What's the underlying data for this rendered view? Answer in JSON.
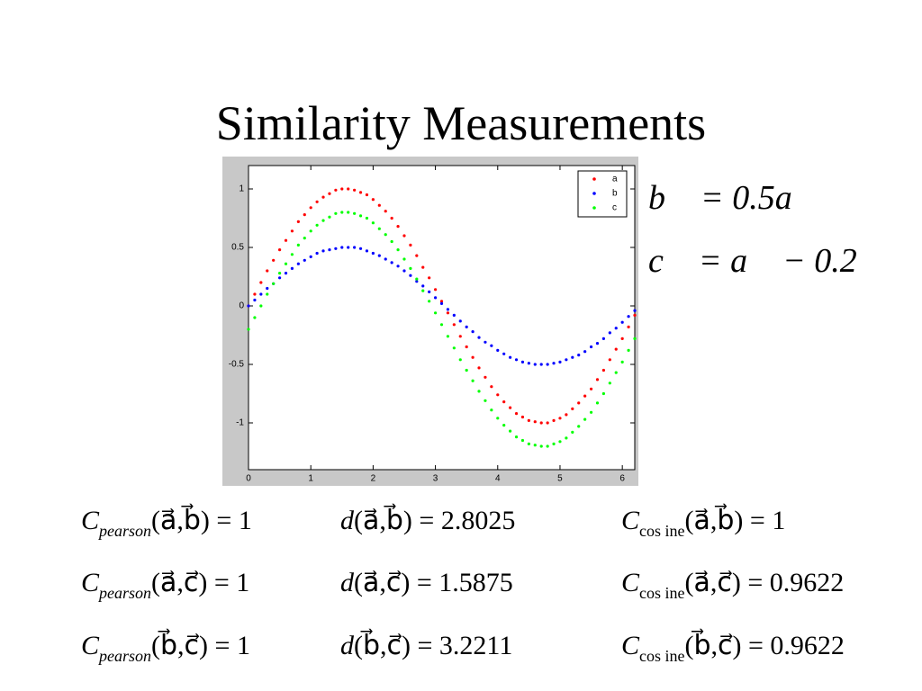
{
  "title": "Similarity Measurements",
  "chart_data": {
    "type": "scatter",
    "x": [
      0,
      0.1,
      0.2,
      0.3,
      0.4,
      0.5,
      0.6,
      0.7,
      0.8,
      0.9,
      1.0,
      1.1,
      1.2,
      1.3,
      1.4,
      1.5,
      1.6,
      1.7,
      1.8,
      1.9,
      2.0,
      2.1,
      2.2,
      2.3,
      2.4,
      2.5,
      2.6,
      2.7,
      2.8,
      2.9,
      3.0,
      3.1,
      3.2,
      3.3,
      3.4,
      3.5,
      3.6,
      3.7,
      3.8,
      3.9,
      4.0,
      4.1,
      4.2,
      4.3,
      4.4,
      4.5,
      4.6,
      4.7,
      4.8,
      4.9,
      5.0,
      5.1,
      5.2,
      5.3,
      5.4,
      5.5,
      5.6,
      5.7,
      5.8,
      5.9,
      6.0,
      6.1,
      6.2
    ],
    "series": [
      {
        "name": "a",
        "color": "#ff0000",
        "values": [
          0,
          0.1,
          0.2,
          0.3,
          0.39,
          0.48,
          0.56,
          0.64,
          0.72,
          0.78,
          0.84,
          0.89,
          0.93,
          0.96,
          0.99,
          1.0,
          1.0,
          0.99,
          0.97,
          0.95,
          0.91,
          0.86,
          0.81,
          0.75,
          0.68,
          0.6,
          0.52,
          0.43,
          0.33,
          0.24,
          0.14,
          0.04,
          -0.06,
          -0.16,
          -0.26,
          -0.35,
          -0.44,
          -0.53,
          -0.61,
          -0.69,
          -0.76,
          -0.82,
          -0.87,
          -0.92,
          -0.95,
          -0.98,
          -0.99,
          -1.0,
          -1.0,
          -0.98,
          -0.96,
          -0.93,
          -0.88,
          -0.83,
          -0.77,
          -0.71,
          -0.63,
          -0.55,
          -0.46,
          -0.37,
          -0.28,
          -0.18,
          -0.08
        ]
      },
      {
        "name": "b",
        "color": "#0000ff",
        "values": [
          0,
          0.05,
          0.1,
          0.15,
          0.19,
          0.24,
          0.28,
          0.32,
          0.36,
          0.39,
          0.42,
          0.45,
          0.47,
          0.48,
          0.49,
          0.5,
          0.5,
          0.5,
          0.49,
          0.47,
          0.45,
          0.43,
          0.4,
          0.37,
          0.34,
          0.3,
          0.26,
          0.21,
          0.17,
          0.12,
          0.07,
          0.02,
          -0.03,
          -0.08,
          -0.13,
          -0.18,
          -0.22,
          -0.27,
          -0.31,
          -0.34,
          -0.38,
          -0.41,
          -0.44,
          -0.46,
          -0.48,
          -0.49,
          -0.5,
          -0.5,
          -0.5,
          -0.49,
          -0.48,
          -0.46,
          -0.44,
          -0.42,
          -0.39,
          -0.35,
          -0.32,
          -0.28,
          -0.23,
          -0.19,
          -0.14,
          -0.09,
          -0.04
        ]
      },
      {
        "name": "c",
        "color": "#00ff00",
        "values": [
          -0.2,
          -0.1,
          0.0,
          0.1,
          0.19,
          0.28,
          0.36,
          0.44,
          0.52,
          0.58,
          0.64,
          0.69,
          0.73,
          0.76,
          0.79,
          0.8,
          0.8,
          0.79,
          0.77,
          0.75,
          0.71,
          0.66,
          0.61,
          0.55,
          0.48,
          0.4,
          0.32,
          0.23,
          0.13,
          0.04,
          -0.06,
          -0.16,
          -0.26,
          -0.36,
          -0.46,
          -0.55,
          -0.64,
          -0.73,
          -0.81,
          -0.89,
          -0.96,
          -1.02,
          -1.07,
          -1.12,
          -1.15,
          -1.18,
          -1.19,
          -1.2,
          -1.2,
          -1.18,
          -1.16,
          -1.13,
          -1.08,
          -1.03,
          -0.97,
          -0.91,
          -0.83,
          -0.75,
          -0.66,
          -0.57,
          -0.48,
          -0.38,
          -0.28
        ]
      }
    ],
    "xlim": [
      0,
      6.2
    ],
    "xticks": [
      0,
      1,
      2,
      3,
      4,
      5,
      6
    ],
    "ylim": [
      -1.4,
      1.2
    ],
    "yticks": [
      -1,
      -0.5,
      0,
      0.5,
      1
    ],
    "grid": false,
    "legend": "upper right"
  },
  "equations": [
    "b⃗ = 0.5a⃗",
    "c⃗ = a⃗ − 0.2"
  ],
  "measures": [
    [
      {
        "symbol": "C",
        "sub": "pearson",
        "args": "(a⃗,b⃗) = 1"
      },
      {
        "symbol": "d",
        "args": "(a⃗,b⃗) = 2.8025"
      },
      {
        "symbol": "C",
        "sub": "cos ine",
        "args": "(a⃗,b⃗) = 1"
      }
    ],
    [
      {
        "symbol": "C",
        "sub": "pearson",
        "args": "(a⃗,c⃗) = 1"
      },
      {
        "symbol": "d",
        "args": "(a⃗,c⃗) = 1.5875"
      },
      {
        "symbol": "C",
        "sub": "cos ine",
        "args": "(a⃗,c⃗) = 0.9622"
      }
    ],
    [
      {
        "symbol": "C",
        "sub": "pearson",
        "args": "(b⃗,c⃗) = 1"
      },
      {
        "symbol": "d",
        "args": "(b⃗,c⃗) = 3.2211"
      },
      {
        "symbol": "C",
        "sub": "cos ine",
        "args": "(b⃗,c⃗) = 0.9622"
      }
    ]
  ]
}
